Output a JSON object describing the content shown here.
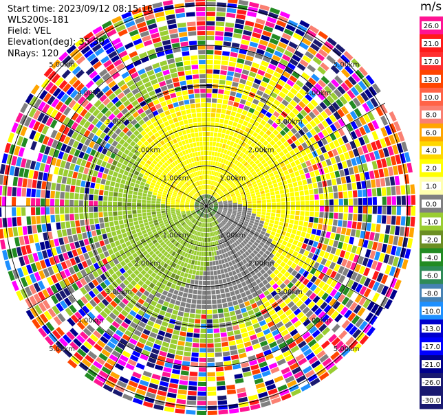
{
  "header": {
    "start_time": "Start time: 2023/09/12 08:15:16",
    "instrument": "WLS200s-181",
    "field": "Field: VEL",
    "elevation": "Elevation(deg): 35.30",
    "nrays": "NRays: 120"
  },
  "chart_data": {
    "type": "heatmap",
    "projection": "polar-ppi",
    "field": "VEL",
    "nrays": 120,
    "elevation_deg": 35.3,
    "range_rings_km": [
      1.0,
      2.0,
      3.0,
      4.0,
      5.0
    ],
    "ring_labels": [
      "1.00km",
      "2.00km",
      "3.00km",
      "4.00km",
      "5.00km"
    ],
    "colorbar": {
      "unit": "m/s",
      "ticks": [
        "26.0",
        "21.0",
        "17.0",
        "13.0",
        "10.0",
        "8.0",
        "6.0",
        "4.0",
        "2.0",
        "1.0",
        "0.0",
        "-1.0",
        "-2.0",
        "-4.0",
        "-6.0",
        "-8.0",
        "-10.0",
        "-13.0",
        "-17.0",
        "-21.0",
        "-26.0",
        "-30.0"
      ],
      "colors": [
        "#ff1493",
        "#ff1a1a",
        "#ff3030",
        "#ff4500",
        "#ff6347",
        "#fa8072",
        "#ffa500",
        "#ffd700",
        "#ffff00",
        "#ffffb0",
        "#808080",
        "#9acd32",
        "#6b8e23",
        "#228b22",
        "#2e8b57",
        "#4682b4",
        "#1e90ff",
        "#0000cd",
        "#0000ff",
        "#00008b",
        "#191970",
        "#191970"
      ]
    }
  }
}
